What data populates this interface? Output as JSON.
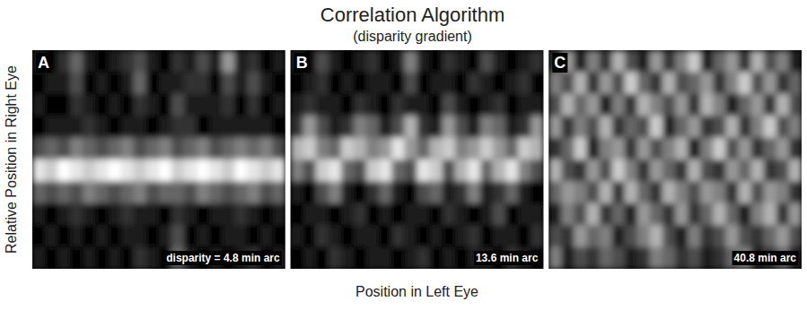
{
  "figure": {
    "title": "Correlation Algorithm",
    "subtitle": "(disparity gradient)",
    "x_label": "Position in Left Eye",
    "y_label": "Relative Position in Right Eye"
  },
  "chart_data": [
    {
      "type": "heatmap",
      "label": "A",
      "annotation": "disparity = 4.8 min arc",
      "color_range": [
        0,
        1
      ],
      "tick_labels": false,
      "cells": [
        [
          0.1,
          0.0,
          0.2,
          0.4,
          0.1,
          0.0,
          0.1,
          0.2,
          0.3,
          0.1,
          0.0,
          0.2,
          0.1,
          0.3,
          0.1,
          0.6,
          0.1,
          0.2,
          0.0,
          0.1
        ],
        [
          0.0,
          0.1,
          0.1,
          0.3,
          0.0,
          0.1,
          0.0,
          0.1,
          0.4,
          0.0,
          0.1,
          0.1,
          0.2,
          0.2,
          0.0,
          0.3,
          0.1,
          0.3,
          0.1,
          0.0
        ],
        [
          0.1,
          0.0,
          0.0,
          0.2,
          0.1,
          0.0,
          0.1,
          0.0,
          0.2,
          0.1,
          0.0,
          0.3,
          0.1,
          0.1,
          0.1,
          0.2,
          0.0,
          0.2,
          0.0,
          0.1
        ],
        [
          0.0,
          0.1,
          0.1,
          0.1,
          0.2,
          0.1,
          0.0,
          0.1,
          0.1,
          0.0,
          0.1,
          0.2,
          0.2,
          0.0,
          0.1,
          0.1,
          0.1,
          0.1,
          0.1,
          0.0
        ],
        [
          0.3,
          0.4,
          0.3,
          0.5,
          0.4,
          0.3,
          0.4,
          0.5,
          0.3,
          0.4,
          0.5,
          0.3,
          0.4,
          0.5,
          0.3,
          0.4,
          0.5,
          0.4,
          0.5,
          0.3
        ],
        [
          0.9,
          0.8,
          1.0,
          0.9,
          0.8,
          0.9,
          1.0,
          0.9,
          0.8,
          0.9,
          1.0,
          0.8,
          0.9,
          1.0,
          0.9,
          0.8,
          1.0,
          0.9,
          0.8,
          0.9
        ],
        [
          0.4,
          0.3,
          0.4,
          0.3,
          0.5,
          0.4,
          0.3,
          0.4,
          0.5,
          0.3,
          0.4,
          0.4,
          0.3,
          0.5,
          0.4,
          0.3,
          0.4,
          0.5,
          0.3,
          0.4
        ],
        [
          0.1,
          0.0,
          0.1,
          0.2,
          0.1,
          0.0,
          0.1,
          0.2,
          0.1,
          0.1,
          0.0,
          0.2,
          0.1,
          0.0,
          0.1,
          0.1,
          0.2,
          0.1,
          0.0,
          0.1
        ],
        [
          0.0,
          0.1,
          0.0,
          0.1,
          0.0,
          0.1,
          0.0,
          0.1,
          0.1,
          0.0,
          0.1,
          0.3,
          0.0,
          0.1,
          0.0,
          0.1,
          0.1,
          0.0,
          0.1,
          0.0
        ],
        [
          0.1,
          0.0,
          0.1,
          0.0,
          0.1,
          0.0,
          0.1,
          0.0,
          0.2,
          0.1,
          0.0,
          0.4,
          0.1,
          0.0,
          0.1,
          0.0,
          0.1,
          0.2,
          0.0,
          0.1
        ]
      ]
    },
    {
      "type": "heatmap",
      "label": "B",
      "annotation": "13.6 min arc",
      "color_range": [
        0,
        1
      ],
      "tick_labels": false,
      "cells": [
        [
          0.1,
          0.0,
          0.3,
          0.1,
          0.0,
          0.1,
          0.2,
          0.0,
          0.1,
          0.5,
          0.1,
          0.0,
          0.2,
          0.1,
          0.0,
          0.3,
          0.1,
          0.0,
          0.1,
          0.2
        ],
        [
          0.0,
          0.1,
          0.2,
          0.0,
          0.1,
          0.0,
          0.1,
          0.1,
          0.0,
          0.3,
          0.0,
          0.1,
          0.1,
          0.0,
          0.2,
          0.1,
          0.0,
          0.1,
          0.2,
          0.0
        ],
        [
          0.1,
          0.2,
          0.1,
          0.1,
          0.0,
          0.2,
          0.1,
          0.0,
          0.2,
          0.1,
          0.1,
          0.0,
          0.3,
          0.1,
          0.0,
          0.1,
          0.2,
          0.0,
          0.1,
          0.1
        ],
        [
          0.2,
          0.6,
          0.3,
          0.1,
          0.2,
          0.5,
          0.4,
          0.1,
          0.3,
          0.7,
          0.2,
          0.1,
          0.6,
          0.3,
          0.1,
          0.5,
          0.4,
          0.1,
          0.2,
          0.6
        ],
        [
          0.7,
          0.8,
          0.5,
          0.4,
          0.8,
          0.7,
          0.5,
          0.6,
          0.9,
          0.6,
          0.4,
          0.7,
          0.8,
          0.5,
          0.6,
          0.8,
          0.6,
          0.4,
          0.8,
          0.7
        ],
        [
          0.5,
          0.3,
          0.8,
          0.9,
          0.4,
          0.3,
          0.8,
          0.9,
          0.4,
          0.3,
          0.9,
          0.8,
          0.3,
          0.7,
          0.9,
          0.4,
          0.7,
          0.9,
          0.5,
          0.3
        ],
        [
          0.1,
          0.0,
          0.3,
          0.5,
          0.1,
          0.0,
          0.2,
          0.4,
          0.1,
          0.0,
          0.3,
          0.4,
          0.1,
          0.2,
          0.5,
          0.1,
          0.2,
          0.4,
          0.1,
          0.0
        ],
        [
          0.0,
          0.1,
          0.1,
          0.0,
          0.1,
          0.2,
          0.0,
          0.1,
          0.0,
          0.1,
          0.1,
          0.0,
          0.2,
          0.1,
          0.0,
          0.1,
          0.3,
          0.0,
          0.1,
          0.1
        ],
        [
          0.1,
          0.0,
          0.2,
          0.1,
          0.0,
          0.1,
          0.1,
          0.0,
          0.2,
          0.1,
          0.0,
          0.1,
          0.0,
          0.1,
          0.2,
          0.0,
          0.1,
          0.1,
          0.0,
          0.2
        ],
        [
          0.0,
          0.1,
          0.0,
          0.2,
          0.1,
          0.0,
          0.1,
          0.1,
          0.0,
          0.1,
          0.2,
          0.0,
          0.1,
          0.0,
          0.1,
          0.1,
          0.0,
          0.2,
          0.1,
          0.0
        ]
      ]
    },
    {
      "type": "heatmap",
      "label": "C",
      "annotation": "40.8 min arc",
      "color_range": [
        0,
        1
      ],
      "tick_labels": false,
      "cells": [
        [
          0.2,
          0.6,
          0.1,
          0.5,
          0.2,
          0.7,
          0.3,
          0.1,
          0.6,
          0.2,
          0.5,
          0.8,
          0.1,
          0.4,
          0.6,
          0.2,
          0.7,
          0.3,
          0.5,
          0.1
        ],
        [
          0.5,
          0.3,
          0.7,
          0.2,
          0.6,
          0.3,
          0.8,
          0.4,
          0.2,
          0.7,
          0.3,
          0.4,
          0.6,
          0.2,
          0.5,
          0.8,
          0.3,
          0.6,
          0.2,
          0.4
        ],
        [
          0.3,
          0.7,
          0.4,
          0.6,
          0.1,
          0.5,
          0.2,
          0.7,
          0.5,
          0.3,
          0.6,
          0.2,
          0.7,
          0.5,
          0.1,
          0.4,
          0.6,
          0.2,
          0.7,
          0.3
        ],
        [
          0.6,
          0.2,
          0.5,
          0.3,
          0.7,
          0.2,
          0.4,
          0.3,
          0.8,
          0.1,
          0.4,
          0.6,
          0.2,
          0.3,
          0.7,
          0.2,
          0.5,
          0.8,
          0.3,
          0.5
        ],
        [
          0.2,
          0.4,
          0.8,
          0.1,
          0.5,
          0.6,
          0.2,
          0.6,
          0.3,
          0.5,
          0.7,
          0.1,
          0.5,
          0.8,
          0.3,
          0.6,
          0.2,
          0.4,
          0.6,
          0.2
        ],
        [
          0.7,
          0.3,
          0.2,
          0.6,
          0.3,
          0.8,
          0.5,
          0.2,
          0.6,
          0.4,
          0.2,
          0.7,
          0.3,
          0.2,
          0.6,
          0.4,
          0.7,
          0.2,
          0.3,
          0.7
        ],
        [
          0.4,
          0.6,
          0.5,
          0.3,
          0.7,
          0.2,
          0.7,
          0.4,
          0.2,
          0.7,
          0.5,
          0.3,
          0.6,
          0.5,
          0.2,
          0.7,
          0.3,
          0.6,
          0.5,
          0.2
        ],
        [
          0.1,
          0.5,
          0.3,
          0.7,
          0.2,
          0.4,
          0.1,
          0.6,
          0.4,
          0.2,
          0.6,
          0.2,
          0.4,
          0.7,
          0.4,
          0.1,
          0.5,
          0.7,
          0.2,
          0.6
        ],
        [
          0.3,
          0.2,
          0.6,
          0.4,
          0.5,
          0.1,
          0.3,
          0.5,
          0.7,
          0.3,
          0.1,
          0.5,
          0.2,
          0.3,
          0.6,
          0.3,
          0.2,
          0.4,
          0.6,
          0.3
        ],
        [
          0.5,
          0.1,
          0.3,
          0.2,
          0.4,
          0.3,
          0.1,
          0.2,
          0.5,
          0.4,
          0.2,
          0.3,
          0.1,
          0.2,
          0.4,
          0.5,
          0.1,
          0.2,
          0.4,
          0.1
        ]
      ]
    }
  ]
}
